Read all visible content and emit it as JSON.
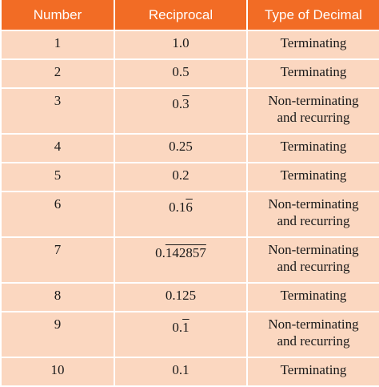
{
  "table": {
    "headers": [
      "Number",
      "Reciprocal",
      "Type of Decimal"
    ],
    "rows": [
      {
        "number": "1",
        "recip_main": "1.0",
        "recip_rep": "",
        "type": [
          "Terminating"
        ]
      },
      {
        "number": "2",
        "recip_main": "0.5",
        "recip_rep": "",
        "type": [
          "Terminating"
        ]
      },
      {
        "number": "3",
        "recip_main": "0.",
        "recip_rep": "3",
        "type": [
          "Non-terminating",
          "and recurring"
        ]
      },
      {
        "number": "4",
        "recip_main": "0.25",
        "recip_rep": "",
        "type": [
          "Terminating"
        ]
      },
      {
        "number": "5",
        "recip_main": "0.2",
        "recip_rep": "",
        "type": [
          "Terminating"
        ]
      },
      {
        "number": "6",
        "recip_main": "0.1",
        "recip_rep": "6",
        "type": [
          "Non-terminating",
          "and recurring"
        ]
      },
      {
        "number": "7",
        "recip_main": "0.",
        "recip_rep": "142857",
        "type": [
          "Non-terminating",
          "and recurring"
        ]
      },
      {
        "number": "8",
        "recip_main": "0.125",
        "recip_rep": "",
        "type": [
          "Terminating"
        ]
      },
      {
        "number": "9",
        "recip_main": "0.",
        "recip_rep": "1",
        "type": [
          "Non-terminating",
          "and recurring"
        ]
      },
      {
        "number": "10",
        "recip_main": "0.1",
        "recip_rep": "",
        "type": [
          "Terminating"
        ]
      }
    ]
  },
  "colors": {
    "header_bg": "#f26c25",
    "header_text": "#ffffff",
    "cell_bg": "#fbd7c0",
    "grid": "#ffffff"
  }
}
